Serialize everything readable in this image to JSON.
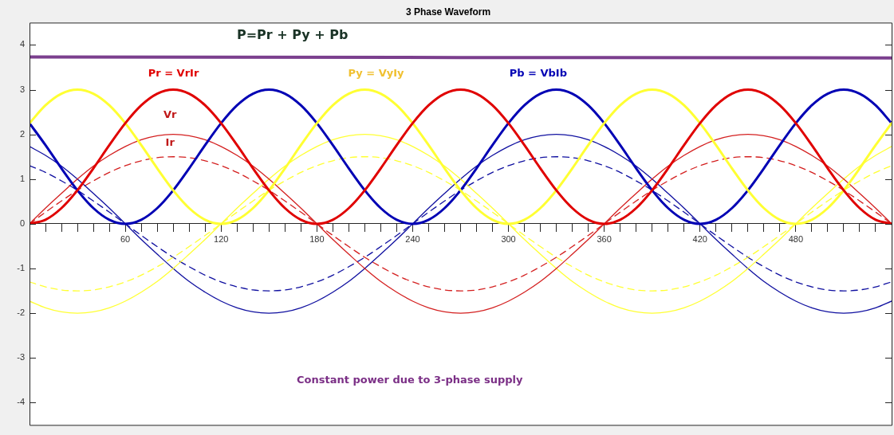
{
  "chart_data": {
    "type": "line",
    "title": "3 Phase Waveform",
    "x": [
      0,
      10,
      20,
      30,
      40,
      50,
      60,
      70,
      80,
      90,
      100,
      110,
      120,
      130,
      140,
      150,
      160,
      170,
      180,
      190,
      200,
      210,
      220,
      230,
      240,
      250,
      260,
      270,
      280,
      290,
      300,
      310,
      320,
      330,
      340,
      350,
      360,
      370,
      380,
      390,
      400,
      410,
      420,
      430,
      440,
      450,
      460,
      470,
      480,
      490,
      500,
      510,
      520,
      530,
      540
    ],
    "xlim": [
      0,
      540
    ],
    "xticks": [
      {
        "value": 0,
        "label": null
      },
      {
        "value": 10,
        "label": null
      },
      {
        "value": 20,
        "label": null
      },
      {
        "value": 30,
        "label": null
      },
      {
        "value": 40,
        "label": null
      },
      {
        "value": 50,
        "label": null
      },
      60,
      {
        "value": 70,
        "label": null
      },
      {
        "value": 80,
        "label": null
      },
      {
        "value": 90,
        "label": null
      },
      {
        "value": 100,
        "label": null
      },
      {
        "value": 110,
        "label": null
      },
      120,
      {
        "value": 130,
        "label": null
      },
      {
        "value": 140,
        "label": null
      },
      {
        "value": 150,
        "label": null
      },
      {
        "value": 160,
        "label": null
      },
      {
        "value": 170,
        "label": null
      },
      180,
      {
        "value": 190,
        "label": null
      },
      {
        "value": 200,
        "label": null
      },
      {
        "value": 210,
        "label": null
      },
      {
        "value": 220,
        "label": null
      },
      {
        "value": 230,
        "label": null
      },
      240,
      {
        "value": 250,
        "label": null
      },
      {
        "value": 260,
        "label": null
      },
      {
        "value": 270,
        "label": null
      },
      {
        "value": 280,
        "label": null
      },
      {
        "value": 290,
        "label": null
      },
      300,
      {
        "value": 310,
        "label": null
      },
      {
        "value": 320,
        "label": null
      },
      {
        "value": 330,
        "label": null
      },
      {
        "value": 340,
        "label": null
      },
      {
        "value": 350,
        "label": null
      },
      360,
      {
        "value": 370,
        "label": null
      },
      {
        "value": 380,
        "label": null
      },
      {
        "value": 390,
        "label": null
      },
      {
        "value": 400,
        "label": null
      },
      {
        "value": 410,
        "label": null
      },
      420,
      {
        "value": 430,
        "label": null
      },
      {
        "value": 440,
        "label": null
      },
      {
        "value": 450,
        "label": null
      },
      {
        "value": 460,
        "label": null
      },
      {
        "value": 470,
        "label": null
      },
      480,
      {
        "value": 490,
        "label": null
      },
      {
        "value": 500,
        "label": null
      },
      {
        "value": 510,
        "label": null
      },
      {
        "value": 520,
        "label": null
      },
      {
        "value": 530,
        "label": null
      },
      {
        "value": 540,
        "label": null
      }
    ],
    "ylim": [
      -4.5,
      4.5
    ],
    "yticks": [
      -4,
      -3,
      -2,
      -1,
      0,
      1,
      2,
      3,
      4
    ],
    "grid": false,
    "legend": false,
    "marker": "none",
    "series": [
      {
        "color": "#7b3f8e",
        "x": [
          0,
          540
        ],
        "values": [
          3.73,
          3.71
        ]
      },
      {
        "color": "#e00000",
        "values": [
          0,
          0.09,
          0.35,
          0.75,
          1.24,
          1.76,
          2.25,
          2.65,
          2.91,
          3,
          2.91,
          2.65,
          2.25,
          1.76,
          1.24,
          0.75,
          0.35,
          0.09,
          0,
          0.09,
          0.35,
          0.75,
          1.24,
          1.76,
          2.25,
          2.65,
          2.91,
          3,
          2.91,
          2.65,
          2.25,
          1.76,
          1.24,
          0.75,
          0.35,
          0.09,
          0,
          0.09,
          0.35,
          0.75,
          1.24,
          1.76,
          2.25,
          2.65,
          2.91,
          3,
          2.91,
          2.65,
          2.25,
          1.76,
          1.24,
          0.75,
          0.35,
          0.09,
          0
        ]
      },
      {
        "color": "#ffff33",
        "values": [
          2.25,
          2.65,
          2.91,
          3,
          2.91,
          2.65,
          2.25,
          1.76,
          1.24,
          0.75,
          0.35,
          0.09,
          0,
          0.09,
          0.35,
          0.75,
          1.24,
          1.76,
          2.25,
          2.65,
          2.91,
          3,
          2.91,
          2.65,
          2.25,
          1.76,
          1.24,
          0.75,
          0.35,
          0.09,
          0,
          0.09,
          0.35,
          0.75,
          1.24,
          1.76,
          2.25,
          2.65,
          2.91,
          3,
          2.91,
          2.65,
          2.25,
          1.76,
          1.24,
          0.75,
          0.35,
          0.09,
          0,
          0.09,
          0.35,
          0.75,
          1.24,
          1.76,
          2.25
        ]
      },
      {
        "color": "#0000b4",
        "values": [
          2.25,
          1.76,
          1.24,
          0.75,
          0.35,
          0.09,
          0,
          0.09,
          0.35,
          0.75,
          1.24,
          1.76,
          2.25,
          2.65,
          2.91,
          3,
          2.91,
          2.65,
          2.25,
          1.76,
          1.24,
          0.75,
          0.35,
          0.09,
          0,
          0.09,
          0.35,
          0.75,
          1.24,
          1.76,
          2.25,
          2.65,
          2.91,
          3,
          2.91,
          2.65,
          2.25,
          1.76,
          1.24,
          0.75,
          0.35,
          0.09,
          0,
          0.09,
          0.35,
          0.75,
          1.24,
          1.76,
          2.25,
          2.65,
          2.91,
          3,
          2.91,
          2.65,
          2.25
        ]
      },
      {
        "color": "#d42020",
        "values": [
          0,
          0.35,
          0.68,
          1,
          1.29,
          1.53,
          1.73,
          1.88,
          1.97,
          2,
          1.97,
          1.88,
          1.73,
          1.53,
          1.29,
          1,
          0.68,
          0.35,
          0,
          -0.35,
          -0.68,
          -1,
          -1.29,
          -1.53,
          -1.73,
          -1.88,
          -1.97,
          -2,
          -1.97,
          -1.88,
          -1.73,
          -1.53,
          -1.29,
          -1,
          -0.68,
          -0.35,
          0,
          0.35,
          0.68,
          1,
          1.29,
          1.53,
          1.73,
          1.88,
          1.97,
          2,
          1.97,
          1.88,
          1.73,
          1.53,
          1.29,
          1,
          0.68,
          0.35,
          0
        ]
      },
      {
        "color": "#ffff33",
        "values": [
          -1.73,
          -1.88,
          -1.97,
          -2,
          -1.97,
          -1.88,
          -1.73,
          -1.53,
          -1.29,
          -1,
          -0.68,
          -0.35,
          0,
          0.35,
          0.68,
          1,
          1.29,
          1.53,
          1.73,
          1.88,
          1.97,
          2,
          1.97,
          1.88,
          1.73,
          1.53,
          1.29,
          1,
          0.68,
          0.35,
          0,
          -0.35,
          -0.68,
          -1,
          -1.29,
          -1.53,
          -1.73,
          -1.88,
          -1.97,
          -2,
          -1.97,
          -1.88,
          -1.73,
          -1.53,
          -1.29,
          -1,
          -0.68,
          -0.35,
          0,
          0.35,
          0.68,
          1,
          1.29,
          1.53,
          1.73
        ]
      },
      {
        "color": "#1010a0",
        "values": [
          1.73,
          1.53,
          1.29,
          1,
          0.68,
          0.35,
          0,
          -0.35,
          -0.68,
          -1,
          -1.29,
          -1.53,
          -1.73,
          -1.88,
          -1.97,
          -2,
          -1.97,
          -1.88,
          -1.73,
          -1.53,
          -1.29,
          -1,
          -0.68,
          -0.35,
          0,
          0.35,
          0.68,
          1,
          1.29,
          1.53,
          1.73,
          1.88,
          1.97,
          2,
          1.97,
          1.88,
          1.73,
          1.53,
          1.29,
          1,
          0.68,
          0.35,
          0,
          -0.35,
          -0.68,
          -1,
          -1.29,
          -1.53,
          -1.73,
          -1.88,
          -1.97,
          -2,
          -1.97,
          -1.88,
          -1.73
        ]
      },
      {
        "color": "#d42020",
        "line_style": "dashed",
        "values": [
          0,
          0.26,
          0.51,
          0.75,
          0.96,
          1.15,
          1.3,
          1.41,
          1.48,
          1.5,
          1.48,
          1.41,
          1.3,
          1.15,
          0.96,
          0.75,
          0.51,
          0.26,
          0,
          -0.26,
          -0.51,
          -0.75,
          -0.96,
          -1.15,
          -1.3,
          -1.41,
          -1.48,
          -1.5,
          -1.48,
          -1.41,
          -1.3,
          -1.15,
          -0.96,
          -0.75,
          -0.51,
          -0.26,
          0,
          0.26,
          0.51,
          0.75,
          0.96,
          1.15,
          1.3,
          1.41,
          1.48,
          1.5,
          1.48,
          1.41,
          1.3,
          1.15,
          0.96,
          0.75,
          0.51,
          0.26,
          0
        ]
      },
      {
        "color": "#ffff33",
        "line_style": "dashed",
        "values": [
          -1.3,
          -1.41,
          -1.48,
          -1.5,
          -1.48,
          -1.41,
          -1.3,
          -1.15,
          -0.96,
          -0.75,
          -0.51,
          -0.26,
          0,
          0.26,
          0.51,
          0.75,
          0.96,
          1.15,
          1.3,
          1.41,
          1.48,
          1.5,
          1.48,
          1.41,
          1.3,
          1.15,
          0.96,
          0.75,
          0.51,
          0.26,
          0,
          -0.26,
          -0.51,
          -0.75,
          -0.96,
          -1.15,
          -1.3,
          -1.41,
          -1.48,
          -1.5,
          -1.48,
          -1.41,
          -1.3,
          -1.15,
          -0.96,
          -0.75,
          -0.51,
          -0.26,
          0,
          0.26,
          0.51,
          0.75,
          0.96,
          1.15,
          1.3
        ]
      },
      {
        "color": "#1010a0",
        "line_style": "dashed",
        "values": [
          1.3,
          1.15,
          0.96,
          0.75,
          0.51,
          0.26,
          0,
          -0.26,
          -0.51,
          -0.75,
          -0.96,
          -1.15,
          -1.3,
          -1.41,
          -1.48,
          -1.5,
          -1.48,
          -1.41,
          -1.3,
          -1.15,
          -0.96,
          -0.75,
          -0.51,
          -0.26,
          0,
          0.26,
          0.51,
          0.75,
          0.96,
          1.15,
          1.3,
          1.41,
          1.48,
          1.5,
          1.48,
          1.41,
          1.3,
          1.15,
          0.96,
          0.75,
          0.51,
          0.26,
          0,
          -0.26,
          -0.51,
          -0.75,
          -0.96,
          -1.15,
          -1.3,
          -1.41,
          -1.48,
          -1.5,
          -1.48,
          -1.41,
          -1.3
        ]
      }
    ],
    "annotations": [
      "P=Pr + Py + Pb",
      "Pr = VrIr",
      "Py = VyIy",
      "Pb = VbIb",
      "Vr",
      "Ir",
      "Constant power due to 3-phase supply"
    ]
  }
}
